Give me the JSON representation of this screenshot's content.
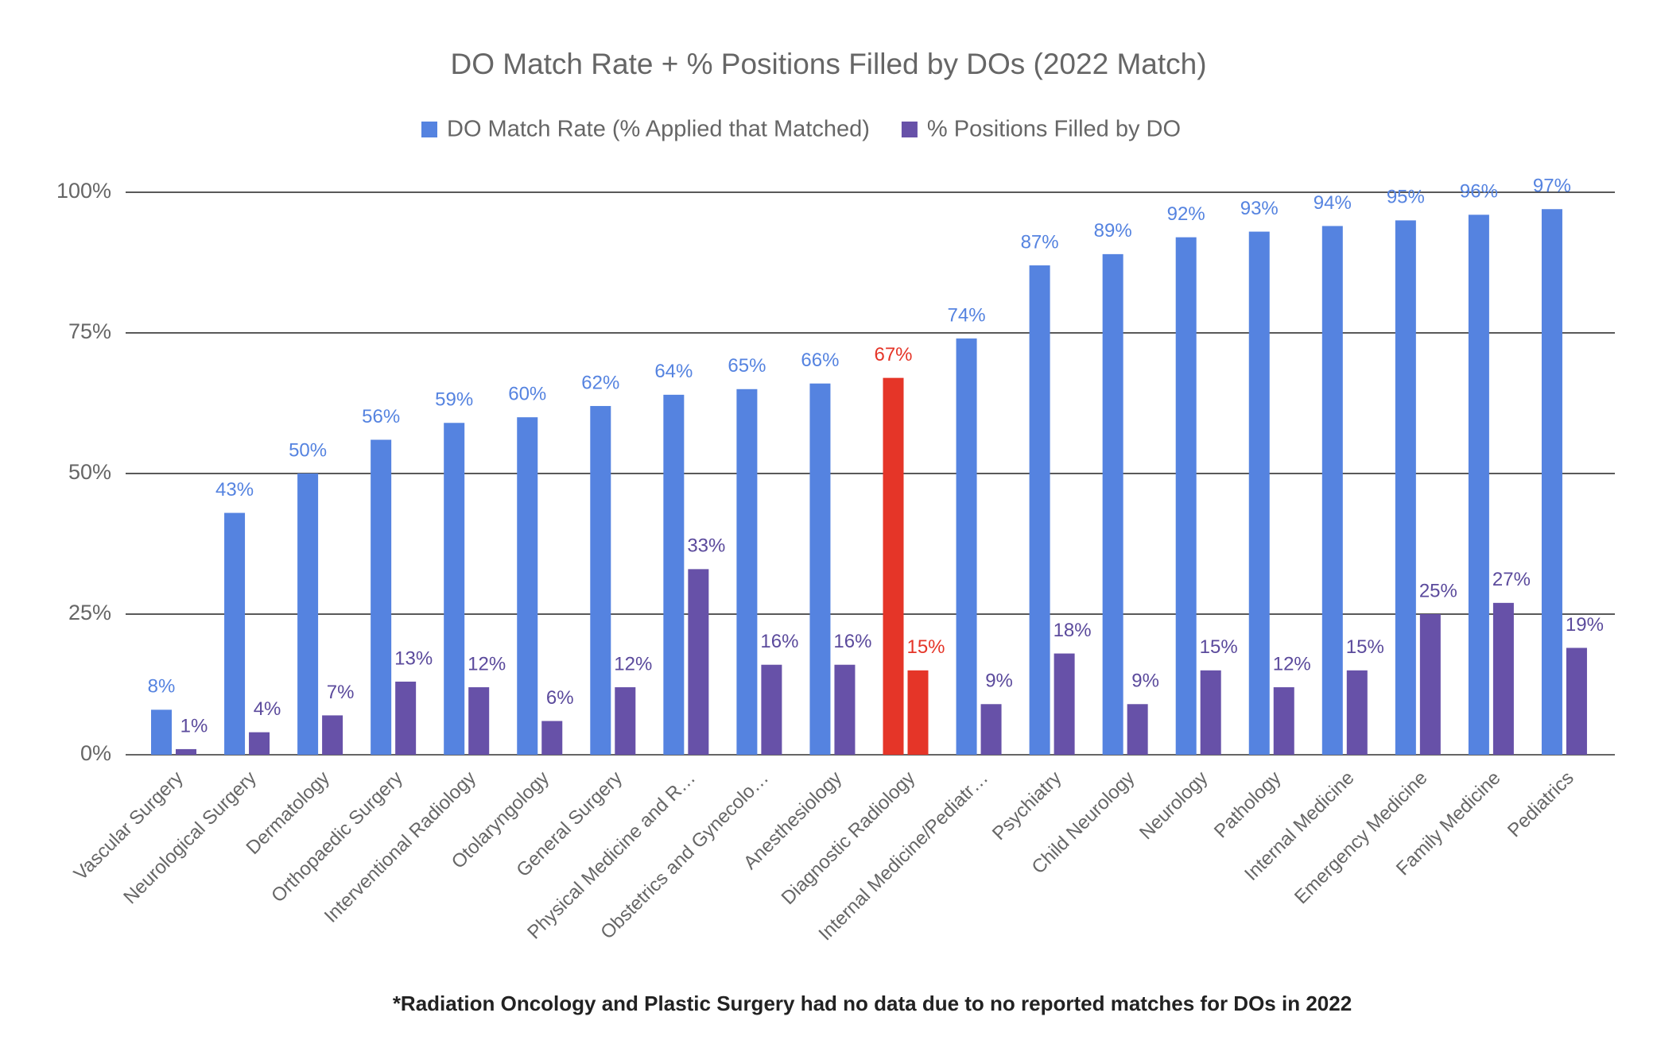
{
  "chart_data": {
    "type": "bar",
    "title": "DO Match Rate + % Positions Filled by DOs (2022 Match)",
    "categories": [
      "Vascular Surgery",
      "Neurological Surgery",
      "Dermatology",
      "Orthopaedic Surgery",
      "Interventional Radiology",
      "Otolaryngology",
      "General Surgery",
      "Physical Medicine and R…",
      "Obstetrics and Gynecolo…",
      "Anesthesiology",
      "Diagnostic Radiology",
      "Internal Medicine/Pediatr…",
      "Psychiatry",
      "Child Neurology",
      "Neurology",
      "Pathology",
      "Internal Medicine",
      "Emergency Medicine",
      "Family Medicine",
      "Pediatrics"
    ],
    "series": [
      {
        "name": "DO Match Rate (% Applied that Matched)",
        "color": "#5583e0",
        "values": [
          8,
          43,
          50,
          56,
          59,
          60,
          62,
          64,
          65,
          66,
          67,
          74,
          87,
          89,
          92,
          93,
          94,
          95,
          96,
          97
        ],
        "value_labels": [
          "8%",
          "43%",
          "50%",
          "56%",
          "59%",
          "60%",
          "62%",
          "64%",
          "65%",
          "66%",
          "67%",
          "74%",
          "87%",
          "89%",
          "92%",
          "93%",
          "94%",
          "95%",
          "96%",
          "97%"
        ]
      },
      {
        "name": "% Positions Filled by DO",
        "color": "#6751a8",
        "values": [
          1,
          4,
          7,
          13,
          12,
          6,
          12,
          33,
          16,
          16,
          15,
          9,
          18,
          9,
          15,
          12,
          15,
          25,
          27,
          19
        ],
        "value_labels": [
          "1%",
          "4%",
          "7%",
          "13%",
          "12%",
          "6%",
          "12%",
          "33%",
          "16%",
          "16%",
          "15%",
          "9%",
          "18%",
          "9%",
          "15%",
          "12%",
          "15%",
          "25%",
          "27%",
          "19%"
        ]
      }
    ],
    "highlight": {
      "index": 10,
      "color": "#e53528"
    },
    "ylim": [
      0,
      100
    ],
    "yticks": [
      {
        "value": 0,
        "label": "0%"
      },
      {
        "value": 25,
        "label": "25%"
      },
      {
        "value": 50,
        "label": "50%"
      },
      {
        "value": 75,
        "label": "75%"
      },
      {
        "value": 100,
        "label": "100%"
      }
    ],
    "grid": true,
    "legend": "top",
    "footnote": "*Radiation Oncology and Plastic Surgery had no data due to no reported matches for DOs in 2022"
  }
}
